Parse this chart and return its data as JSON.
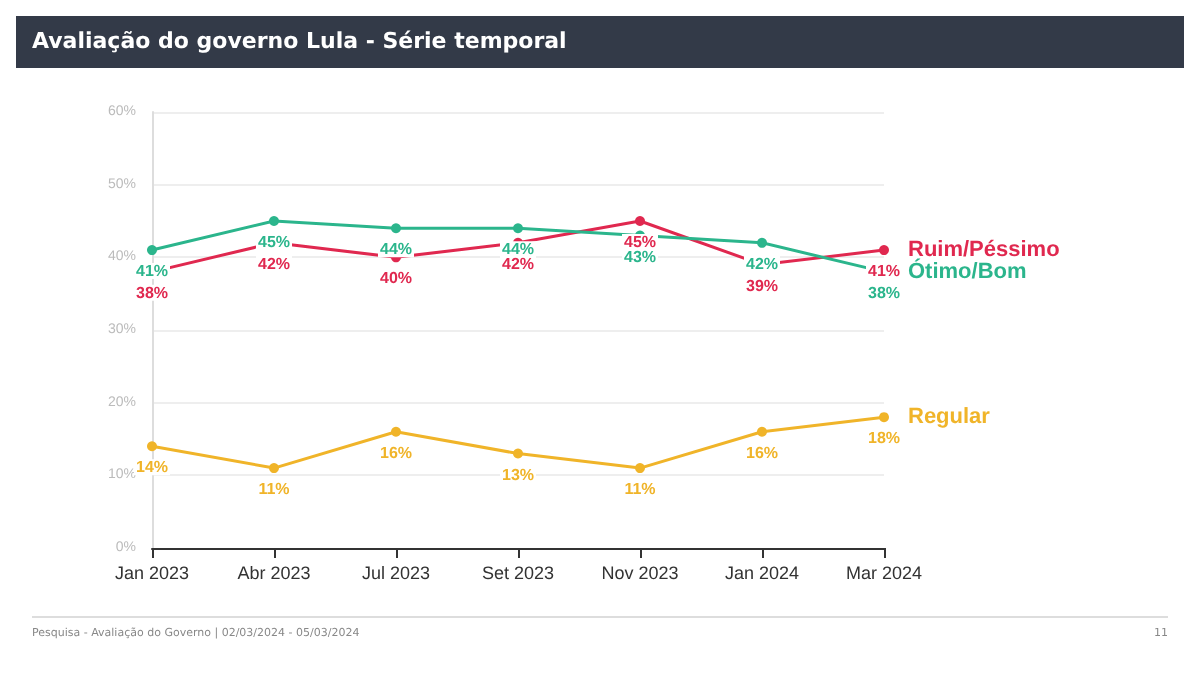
{
  "chart_data": {
    "type": "line",
    "title": "Avaliação do governo Lula - Série temporal",
    "categories": [
      "Jan 2023",
      "Abr 2023",
      "Jul 2023",
      "Set 2023",
      "Nov 2023",
      "Jan 2024",
      "Mar 2024"
    ],
    "series": [
      {
        "name": "Ruim/Péssimo",
        "color": "#e0284f",
        "values": [
          38,
          42,
          40,
          42,
          45,
          39,
          41
        ],
        "value_labels": [
          "38%",
          "42%",
          "40%",
          "42%",
          "45%",
          "39%",
          "41%"
        ]
      },
      {
        "name": "Ótimo/Bom",
        "color": "#2bb58c",
        "values": [
          41,
          45,
          44,
          44,
          43,
          42,
          38
        ],
        "value_labels": [
          "41%",
          "45%",
          "44%",
          "44%",
          "43%",
          "42%",
          "38%"
        ]
      },
      {
        "name": "Regular",
        "color": "#f0b429",
        "values": [
          14,
          11,
          16,
          13,
          11,
          16,
          18
        ],
        "value_labels": [
          "14%",
          "11%",
          "16%",
          "13%",
          "11%",
          "16%",
          "18%"
        ]
      }
    ],
    "ylim": [
      0,
      60
    ],
    "yticks": [
      {
        "value": 0,
        "label": "0%"
      },
      {
        "value": 10,
        "label": "10%"
      },
      {
        "value": 20,
        "label": "20%"
      },
      {
        "value": 30,
        "label": "30%"
      },
      {
        "value": 40,
        "label": "40%"
      },
      {
        "value": 50,
        "label": "50%"
      },
      {
        "value": 60,
        "label": "60%"
      }
    ],
    "grid": "y",
    "legend": false,
    "marker": "circle",
    "line_style": "solid",
    "annotations": [
      "Pesquisa - Avaliação do Governo | 02/03/2024 - 05/03/2024",
      "11"
    ]
  }
}
